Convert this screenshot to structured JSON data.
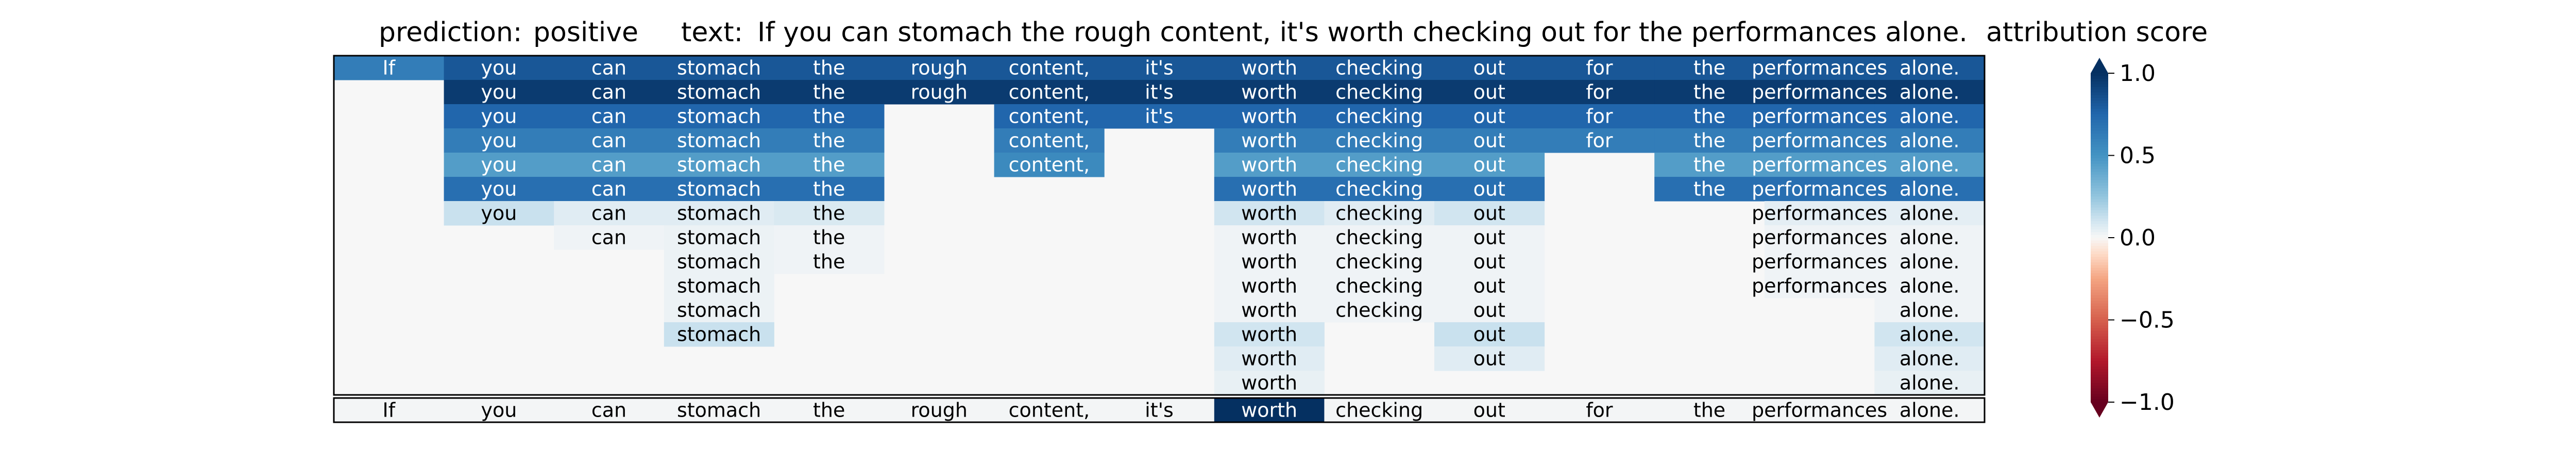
{
  "chart_data": {
    "type": "heatmap",
    "title_parts": {
      "prediction_label": "prediction:",
      "prediction_value": "positive",
      "text_label": "text:",
      "text_value": "If you can stomach the rough content, it's worth checking out for the performances alone.",
      "colorbar_title": "attribution score"
    },
    "tokens": [
      "If",
      "you",
      "can",
      "stomach",
      "the",
      "rough",
      "content,",
      "it's",
      "worth",
      "checking",
      "out",
      "for",
      "the",
      "performances",
      "alone."
    ],
    "matrix": [
      [
        0.62,
        0.82,
        0.82,
        0.82,
        0.82,
        0.82,
        0.82,
        0.82,
        0.82,
        0.82,
        0.82,
        0.82,
        0.82,
        0.82,
        0.82
      ],
      [
        null,
        0.95,
        0.95,
        0.95,
        0.95,
        0.95,
        0.95,
        0.95,
        0.95,
        0.95,
        0.95,
        0.95,
        0.95,
        0.95,
        0.95
      ],
      [
        null,
        0.75,
        0.75,
        0.75,
        0.75,
        null,
        0.75,
        0.75,
        0.75,
        0.75,
        0.75,
        0.75,
        0.75,
        0.75,
        0.75
      ],
      [
        null,
        0.62,
        0.62,
        0.62,
        0.62,
        null,
        0.62,
        null,
        0.62,
        0.62,
        0.62,
        0.62,
        0.62,
        0.62,
        0.62
      ],
      [
        null,
        0.45,
        0.45,
        0.45,
        0.45,
        null,
        0.55,
        null,
        0.45,
        0.45,
        0.45,
        null,
        0.45,
        0.45,
        0.45
      ],
      [
        null,
        0.7,
        0.7,
        0.7,
        0.7,
        null,
        null,
        null,
        0.7,
        0.7,
        0.7,
        null,
        0.7,
        0.7,
        0.7
      ],
      [
        null,
        0.12,
        0.06,
        0.06,
        0.08,
        null,
        null,
        null,
        0.1,
        0.06,
        0.1,
        null,
        null,
        0.05,
        0.05
      ],
      [
        null,
        null,
        0.02,
        0.03,
        0.02,
        null,
        null,
        null,
        0.02,
        0.02,
        0.02,
        null,
        null,
        0.02,
        0.02
      ],
      [
        null,
        null,
        null,
        0.03,
        0.02,
        null,
        null,
        null,
        0.02,
        0.02,
        0.02,
        null,
        null,
        0.02,
        0.02
      ],
      [
        null,
        null,
        null,
        0.03,
        null,
        null,
        null,
        null,
        0.02,
        0.02,
        0.02,
        null,
        null,
        0.02,
        0.02
      ],
      [
        null,
        null,
        null,
        0.03,
        null,
        null,
        null,
        null,
        0.02,
        0.02,
        0.02,
        null,
        null,
        null,
        0.02
      ],
      [
        null,
        null,
        null,
        0.12,
        null,
        null,
        null,
        null,
        0.1,
        null,
        0.12,
        null,
        null,
        null,
        0.1
      ],
      [
        null,
        null,
        null,
        null,
        null,
        null,
        null,
        null,
        0.06,
        null,
        0.06,
        null,
        null,
        null,
        0.06
      ],
      [
        null,
        null,
        null,
        null,
        null,
        null,
        null,
        null,
        0.04,
        null,
        null,
        null,
        null,
        null,
        0.04
      ]
    ],
    "summary_row": [
      0.01,
      0.01,
      0.01,
      0.01,
      0.01,
      0.01,
      0.01,
      0.01,
      1.0,
      0.01,
      0.01,
      0.01,
      0.01,
      0.01,
      0.01
    ],
    "colorbar": {
      "colormap": "RdBu",
      "range": [
        -1.0,
        1.0
      ],
      "ticks": [
        1.0,
        0.5,
        0.0,
        -0.5,
        -1.0
      ],
      "tick_labels": [
        "1.0",
        "0.5",
        "0.0",
        "−0.5",
        "−1.0"
      ],
      "extend": "both"
    }
  }
}
